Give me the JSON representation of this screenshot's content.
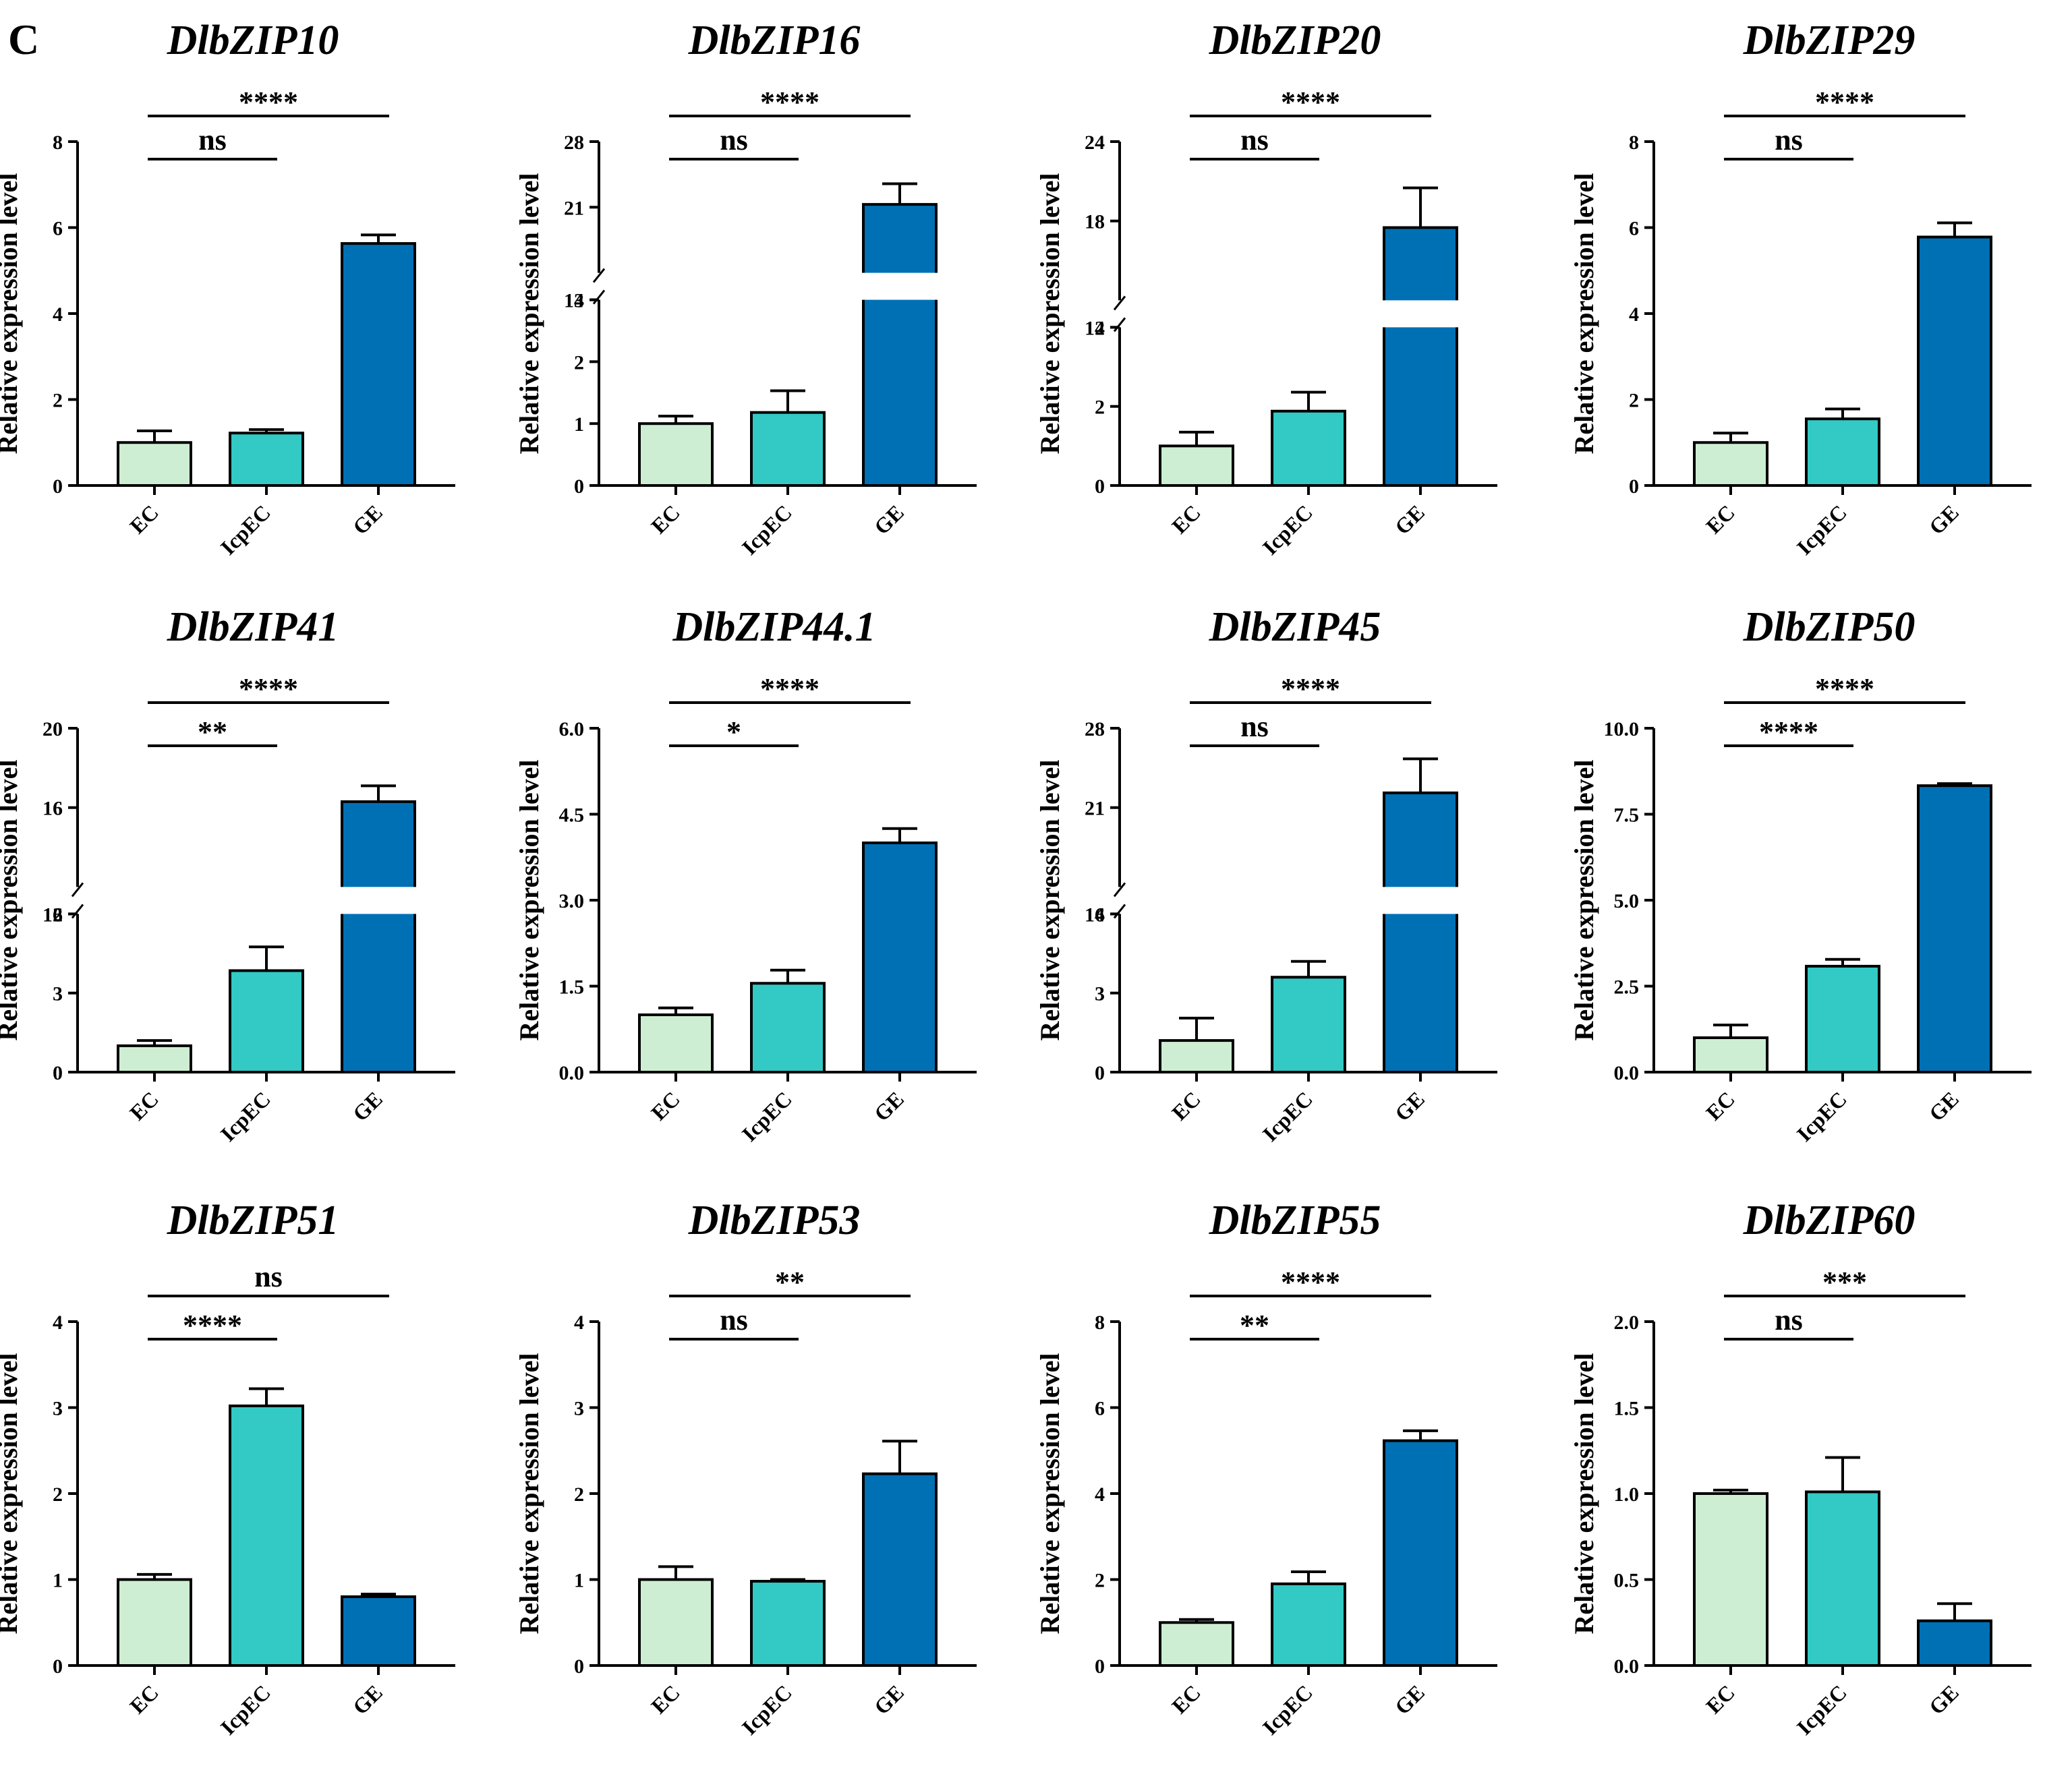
{
  "panel_label": "C",
  "colors": {
    "EC": "#cdeed2",
    "IcpEC": "#33c9c4",
    "GE": "#0070b5",
    "axis": "#000000",
    "break": "#ffffff"
  },
  "chart_data": [
    {
      "type": "bar",
      "title": "DlbZIP10",
      "ylabel": "Relative expression level",
      "categories": [
        "EC",
        "IcpEC",
        "GE"
      ],
      "values": [
        1.0,
        1.22,
        5.63
      ],
      "errors": [
        0.27,
        0.08,
        0.2
      ],
      "ylim": [
        0,
        8
      ],
      "ticks": [
        "0",
        "2",
        "4",
        "6",
        "8"
      ],
      "tick_values": [
        0,
        2,
        4,
        6,
        8
      ],
      "break": null,
      "comparisons": [
        {
          "from": "EC",
          "to": "IcpEC",
          "label": "ns"
        },
        {
          "from": "EC",
          "to": "GE",
          "label": "****"
        }
      ]
    },
    {
      "type": "bar",
      "title": "DlbZIP16",
      "ylabel": "Relative expression level",
      "categories": [
        "EC",
        "IcpEC",
        "GE"
      ],
      "values": [
        1.0,
        1.18,
        21.3
      ],
      "errors": [
        0.12,
        0.35,
        2.2
      ],
      "ylim": [
        0,
        28
      ],
      "ticks": [
        "0",
        "1",
        "2",
        "3",
        "14",
        "21",
        "28"
      ],
      "tick_values": [
        0,
        1,
        2,
        3,
        14,
        21,
        28
      ],
      "break": {
        "low": 3,
        "high": 14,
        "frac": 0.54
      },
      "comparisons": [
        {
          "from": "EC",
          "to": "IcpEC",
          "label": "ns"
        },
        {
          "from": "EC",
          "to": "GE",
          "label": "****"
        }
      ]
    },
    {
      "type": "bar",
      "title": "DlbZIP20",
      "ylabel": "Relative expression level",
      "categories": [
        "EC",
        "IcpEC",
        "GE"
      ],
      "values": [
        1.0,
        1.88,
        17.5
      ],
      "errors": [
        0.35,
        0.48,
        3.0
      ],
      "ylim": [
        0,
        24
      ],
      "ticks": [
        "0",
        "2",
        "4",
        "12",
        "18",
        "24"
      ],
      "tick_values": [
        0,
        2,
        4,
        12,
        18,
        24
      ],
      "break": {
        "low": 4,
        "high": 12,
        "frac": 0.46
      },
      "comparisons": [
        {
          "from": "EC",
          "to": "IcpEC",
          "label": "ns"
        },
        {
          "from": "EC",
          "to": "GE",
          "label": "****"
        }
      ]
    },
    {
      "type": "bar",
      "title": "DlbZIP29",
      "ylabel": "Relative expression level",
      "categories": [
        "EC",
        "IcpEC",
        "GE"
      ],
      "values": [
        1.0,
        1.55,
        5.78
      ],
      "errors": [
        0.22,
        0.23,
        0.33
      ],
      "ylim": [
        0,
        8
      ],
      "ticks": [
        "0",
        "2",
        "4",
        "6",
        "8"
      ],
      "tick_values": [
        0,
        2,
        4,
        6,
        8
      ],
      "break": null,
      "comparisons": [
        {
          "from": "EC",
          "to": "IcpEC",
          "label": "ns"
        },
        {
          "from": "EC",
          "to": "GE",
          "label": "****"
        }
      ]
    },
    {
      "type": "bar",
      "title": "DlbZIP41",
      "ylabel": "Relative expression level",
      "categories": [
        "EC",
        "IcpEC",
        "GE"
      ],
      "values": [
        1.0,
        3.85,
        16.3
      ],
      "errors": [
        0.2,
        0.9,
        0.8
      ],
      "ylim": [
        0,
        20
      ],
      "ticks": [
        "0",
        "3",
        "6",
        "12",
        "16",
        "20"
      ],
      "tick_values": [
        0,
        3,
        6,
        12,
        16,
        20
      ],
      "break": {
        "low": 6,
        "high": 12,
        "frac": 0.46
      },
      "comparisons": [
        {
          "from": "EC",
          "to": "IcpEC",
          "label": "**"
        },
        {
          "from": "EC",
          "to": "GE",
          "label": "****"
        }
      ]
    },
    {
      "type": "bar",
      "title": "DlbZIP44.1",
      "ylabel": "Relative expression level",
      "categories": [
        "EC",
        "IcpEC",
        "GE"
      ],
      "values": [
        1.0,
        1.55,
        4.0
      ],
      "errors": [
        0.12,
        0.23,
        0.25
      ],
      "ylim": [
        0,
        6
      ],
      "ticks": [
        "0.0",
        "1.5",
        "3.0",
        "4.5",
        "6.0"
      ],
      "tick_values": [
        0,
        1.5,
        3,
        4.5,
        6
      ],
      "break": null,
      "comparisons": [
        {
          "from": "EC",
          "to": "IcpEC",
          "label": "*"
        },
        {
          "from": "EC",
          "to": "GE",
          "label": "****"
        }
      ]
    },
    {
      "type": "bar",
      "title": "DlbZIP45",
      "ylabel": "Relative expression level",
      "categories": [
        "EC",
        "IcpEC",
        "GE"
      ],
      "values": [
        1.2,
        3.6,
        22.3
      ],
      "errors": [
        0.85,
        0.6,
        3.0
      ],
      "ylim": [
        0,
        28
      ],
      "ticks": [
        "0",
        "3",
        "6",
        "14",
        "21",
        "28"
      ],
      "tick_values": [
        0,
        3,
        6,
        14,
        21,
        28
      ],
      "break": {
        "low": 6,
        "high": 14,
        "frac": 0.46
      },
      "comparisons": [
        {
          "from": "EC",
          "to": "IcpEC",
          "label": "ns"
        },
        {
          "from": "EC",
          "to": "GE",
          "label": "****"
        }
      ]
    },
    {
      "type": "bar",
      "title": "DlbZIP50",
      "ylabel": "Relative expression level",
      "categories": [
        "EC",
        "IcpEC",
        "GE"
      ],
      "values": [
        1.0,
        3.08,
        8.33
      ],
      "errors": [
        0.37,
        0.2,
        0.06
      ],
      "ylim": [
        0,
        10
      ],
      "ticks": [
        "0.0",
        "2.5",
        "5.0",
        "7.5",
        "10.0"
      ],
      "tick_values": [
        0,
        2.5,
        5,
        7.5,
        10
      ],
      "break": null,
      "comparisons": [
        {
          "from": "EC",
          "to": "IcpEC",
          "label": "****"
        },
        {
          "from": "EC",
          "to": "GE",
          "label": "****"
        }
      ]
    },
    {
      "type": "bar",
      "title": "DlbZIP51",
      "ylabel": "Relative expression level",
      "categories": [
        "EC",
        "IcpEC",
        "GE"
      ],
      "values": [
        1.0,
        3.02,
        0.8
      ],
      "errors": [
        0.06,
        0.2,
        0.03
      ],
      "ylim": [
        0,
        4
      ],
      "ticks": [
        "0",
        "1",
        "2",
        "3",
        "4"
      ],
      "tick_values": [
        0,
        1,
        2,
        3,
        4
      ],
      "break": null,
      "comparisons": [
        {
          "from": "EC",
          "to": "IcpEC",
          "label": "****"
        },
        {
          "from": "EC",
          "to": "GE",
          "label": "ns"
        }
      ]
    },
    {
      "type": "bar",
      "title": "DlbZIP53",
      "ylabel": "Relative expression level",
      "categories": [
        "EC",
        "IcpEC",
        "GE"
      ],
      "values": [
        1.0,
        0.98,
        2.23
      ],
      "errors": [
        0.15,
        0.02,
        0.38
      ],
      "ylim": [
        0,
        4
      ],
      "ticks": [
        "0",
        "1",
        "2",
        "3",
        "4"
      ],
      "tick_values": [
        0,
        1,
        2,
        3,
        4
      ],
      "break": null,
      "comparisons": [
        {
          "from": "EC",
          "to": "IcpEC",
          "label": "ns"
        },
        {
          "from": "EC",
          "to": "GE",
          "label": "**"
        }
      ]
    },
    {
      "type": "bar",
      "title": "DlbZIP55",
      "ylabel": "Relative expression level",
      "categories": [
        "EC",
        "IcpEC",
        "GE"
      ],
      "values": [
        1.0,
        1.9,
        5.23
      ],
      "errors": [
        0.07,
        0.28,
        0.23
      ],
      "ylim": [
        0,
        8
      ],
      "ticks": [
        "0",
        "2",
        "4",
        "6",
        "8"
      ],
      "tick_values": [
        0,
        2,
        4,
        6,
        8
      ],
      "break": null,
      "comparisons": [
        {
          "from": "EC",
          "to": "IcpEC",
          "label": "**"
        },
        {
          "from": "EC",
          "to": "GE",
          "label": "****"
        }
      ]
    },
    {
      "type": "bar",
      "title": "DlbZIP60",
      "ylabel": "Relative expression level",
      "categories": [
        "EC",
        "IcpEC",
        "GE"
      ],
      "values": [
        1.0,
        1.01,
        0.26
      ],
      "errors": [
        0.02,
        0.2,
        0.1
      ],
      "ylim": [
        0,
        2
      ],
      "ticks": [
        "0.0",
        "0.5",
        "1.0",
        "1.5",
        "2.0"
      ],
      "tick_values": [
        0,
        0.5,
        1,
        1.5,
        2
      ],
      "break": null,
      "comparisons": [
        {
          "from": "EC",
          "to": "IcpEC",
          "label": "ns"
        },
        {
          "from": "EC",
          "to": "GE",
          "label": "***"
        }
      ]
    }
  ]
}
